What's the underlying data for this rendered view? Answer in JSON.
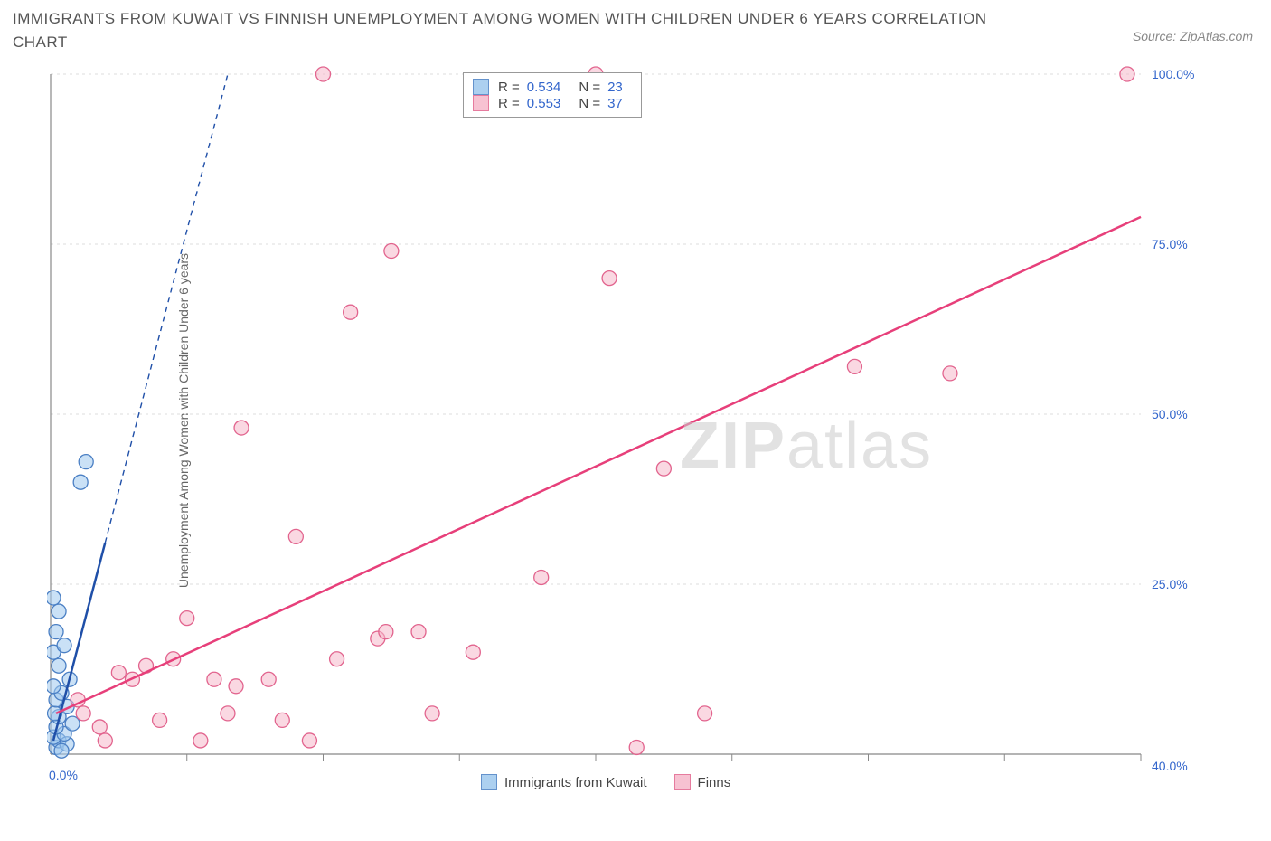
{
  "title": "IMMIGRANTS FROM KUWAIT VS FINNISH UNEMPLOYMENT AMONG WOMEN WITH CHILDREN UNDER 6 YEARS CORRELATION CHART",
  "source": "Source: ZipAtlas.com",
  "ylabel": "Unemployment Among Women with Children Under 6 years",
  "watermark_bold": "ZIP",
  "watermark_light": "atlas",
  "chart": {
    "type": "scatter",
    "xlim": [
      0,
      40
    ],
    "ylim": [
      0,
      100
    ],
    "xtick_step": 5,
    "ytick_step": 25,
    "ytick_labels": [
      "25.0%",
      "50.0%",
      "75.0%",
      "100.0%"
    ],
    "xtick_labels_shown": [
      "0.0%",
      "40.0%"
    ],
    "grid_color": "#dddddd",
    "axis_color": "#888888",
    "background_color": "#ffffff",
    "label_color": "#3366cc",
    "label_fontsize": 14,
    "series": [
      {
        "name": "Immigrants from Kuwait",
        "marker_color": "#9ec8ee",
        "marker_border": "#4a7fc4",
        "marker_fill_opacity": 0.55,
        "marker_radius": 8,
        "trend_color": "#1f4fa8",
        "trend_width": 2.5,
        "trend_dash": "6,5",
        "trend_solid_until_x": 2.0,
        "trend": {
          "x1": 0.1,
          "y1": 2,
          "x2": 6.5,
          "y2": 100
        },
        "R": "0.534",
        "N": "23",
        "points": [
          {
            "x": 0.2,
            "y": 1
          },
          {
            "x": 0.3,
            "y": 2
          },
          {
            "x": 0.1,
            "y": 2.5
          },
          {
            "x": 0.6,
            "y": 1.5
          },
          {
            "x": 0.5,
            "y": 3
          },
          {
            "x": 0.2,
            "y": 4
          },
          {
            "x": 0.8,
            "y": 4.5
          },
          {
            "x": 0.3,
            "y": 5.5
          },
          {
            "x": 0.15,
            "y": 6
          },
          {
            "x": 0.6,
            "y": 7
          },
          {
            "x": 0.2,
            "y": 8
          },
          {
            "x": 0.4,
            "y": 9
          },
          {
            "x": 0.1,
            "y": 10
          },
          {
            "x": 0.7,
            "y": 11
          },
          {
            "x": 0.3,
            "y": 13
          },
          {
            "x": 0.1,
            "y": 15
          },
          {
            "x": 0.5,
            "y": 16
          },
          {
            "x": 0.2,
            "y": 18
          },
          {
            "x": 0.3,
            "y": 21
          },
          {
            "x": 0.1,
            "y": 23
          },
          {
            "x": 1.1,
            "y": 40
          },
          {
            "x": 1.3,
            "y": 43
          },
          {
            "x": 0.4,
            "y": 0.5
          }
        ]
      },
      {
        "name": "Finns",
        "marker_color": "#f6b8cb",
        "marker_border": "#e2648e",
        "marker_fill_opacity": 0.55,
        "marker_radius": 8,
        "trend_color": "#e73f7a",
        "trend_width": 2.5,
        "trend_dash": "none",
        "trend": {
          "x1": 0.2,
          "y1": 6,
          "x2": 40,
          "y2": 79
        },
        "R": "0.553",
        "N": "37",
        "points": [
          {
            "x": 1.0,
            "y": 8
          },
          {
            "x": 1.8,
            "y": 4
          },
          {
            "x": 2.5,
            "y": 12
          },
          {
            "x": 3.0,
            "y": 11
          },
          {
            "x": 3.5,
            "y": 13
          },
          {
            "x": 4.0,
            "y": 5
          },
          {
            "x": 5.0,
            "y": 20
          },
          {
            "x": 5.5,
            "y": 2
          },
          {
            "x": 6.0,
            "y": 11
          },
          {
            "x": 6.5,
            "y": 6
          },
          {
            "x": 7.0,
            "y": 48
          },
          {
            "x": 8.0,
            "y": 11
          },
          {
            "x": 8.5,
            "y": 5
          },
          {
            "x": 9.0,
            "y": 32
          },
          {
            "x": 9.5,
            "y": 2
          },
          {
            "x": 10.0,
            "y": 100
          },
          {
            "x": 10.5,
            "y": 14
          },
          {
            "x": 11.0,
            "y": 65
          },
          {
            "x": 12.0,
            "y": 17
          },
          {
            "x": 12.3,
            "y": 18
          },
          {
            "x": 12.5,
            "y": 74
          },
          {
            "x": 13.5,
            "y": 18
          },
          {
            "x": 14.0,
            "y": 6
          },
          {
            "x": 15.5,
            "y": 15
          },
          {
            "x": 18.0,
            "y": 26
          },
          {
            "x": 20.0,
            "y": 100
          },
          {
            "x": 20.5,
            "y": 70
          },
          {
            "x": 21.5,
            "y": 1
          },
          {
            "x": 22.5,
            "y": 42
          },
          {
            "x": 24.0,
            "y": 6
          },
          {
            "x": 29.5,
            "y": 57
          },
          {
            "x": 33.0,
            "y": 56
          },
          {
            "x": 39.5,
            "y": 100
          },
          {
            "x": 2.0,
            "y": 2
          },
          {
            "x": 4.5,
            "y": 14
          },
          {
            "x": 1.2,
            "y": 6
          },
          {
            "x": 6.8,
            "y": 10
          }
        ]
      }
    ],
    "legend_bottom": [
      {
        "label": "Immigrants from Kuwait",
        "fill": "#9ec8ee",
        "border": "#4a7fc4"
      },
      {
        "label": "Finns",
        "fill": "#f6b8cb",
        "border": "#e2648e"
      }
    ]
  }
}
